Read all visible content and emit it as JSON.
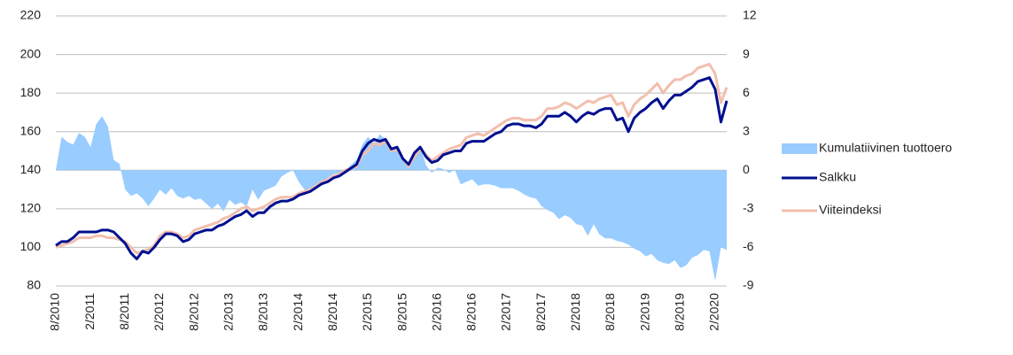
{
  "chart_data": {
    "type": "line",
    "categories": [
      "8/2010",
      null,
      null,
      null,
      null,
      null,
      "2/2011",
      null,
      null,
      null,
      null,
      null,
      "8/2011",
      null,
      null,
      null,
      null,
      null,
      "2/2012",
      null,
      null,
      null,
      null,
      null,
      "8/2012",
      null,
      null,
      null,
      null,
      null,
      "2/2013",
      null,
      null,
      null,
      null,
      null,
      "8/2013",
      null,
      null,
      null,
      null,
      null,
      "2/2014",
      null,
      null,
      null,
      null,
      null,
      "8/2014",
      null,
      null,
      null,
      null,
      null,
      "2/2015",
      null,
      null,
      null,
      null,
      null,
      "8/2015",
      null,
      null,
      null,
      null,
      null,
      "2/2016",
      null,
      null,
      null,
      null,
      null,
      "8/2016",
      null,
      null,
      null,
      null,
      null,
      "2/2017",
      null,
      null,
      null,
      null,
      null,
      "8/2017",
      null,
      null,
      null,
      null,
      null,
      "2/2018",
      null,
      null,
      null,
      null,
      null,
      "8/2018",
      null,
      null,
      null,
      null,
      null,
      "2/2019",
      null,
      null,
      null,
      null,
      null,
      "8/2019",
      null,
      null,
      null,
      null,
      null,
      "2/2020",
      null,
      null
    ],
    "series": [
      {
        "name": "Kumulatiivinen tuottoero",
        "kind": "area",
        "axis": "y2",
        "color": "#99ccff",
        "values": [
          0.0,
          2.6,
          2.2,
          2.0,
          2.9,
          2.6,
          1.8,
          3.6,
          4.2,
          3.4,
          0.8,
          0.5,
          -1.5,
          -2.0,
          -1.8,
          -2.2,
          -2.8,
          -2.2,
          -1.5,
          -1.9,
          -1.4,
          -2.0,
          -2.2,
          -2.0,
          -2.3,
          -2.2,
          -2.6,
          -3.0,
          -2.6,
          -3.2,
          -2.3,
          -2.7,
          -2.5,
          -2.8,
          -1.5,
          -2.3,
          -1.6,
          -1.4,
          -1.2,
          -0.5,
          -0.2,
          0.0,
          -0.9,
          -1.5,
          -1.7,
          -1.3,
          -1.0,
          -0.6,
          -0.3,
          -0.2,
          0.0,
          0.4,
          0.8,
          2.0,
          2.6,
          2.0,
          2.8,
          2.4,
          1.8,
          1.7,
          0.8,
          0.2,
          1.1,
          1.9,
          0.4,
          -0.2,
          0.2,
          0.1,
          -0.2,
          0.0,
          -1.1,
          -0.9,
          -0.7,
          -1.2,
          -1.1,
          -1.1,
          -1.2,
          -1.4,
          -1.4,
          -1.4,
          -1.6,
          -1.9,
          -2.1,
          -2.2,
          -2.8,
          -3.1,
          -3.3,
          -3.8,
          -3.5,
          -3.7,
          -4.2,
          -4.3,
          -5.1,
          -4.2,
          -5.0,
          -5.3,
          -5.3,
          -5.5,
          -5.6,
          -5.8,
          -6.1,
          -6.3,
          -6.7,
          -6.5,
          -7.0,
          -7.2,
          -7.3,
          -7.0,
          -7.6,
          -7.4,
          -6.8,
          -6.6,
          -6.2,
          -6.3,
          -8.6,
          -6.0,
          -6.2
        ]
      },
      {
        "name": "Viiteindeksi",
        "kind": "line",
        "color": "#f2bfae",
        "values": [
          100,
          101,
          102,
          103,
          105,
          105,
          105,
          106,
          106,
          105,
          105,
          104,
          103,
          100,
          97,
          98,
          99,
          101,
          106,
          108,
          108,
          107,
          105,
          106,
          109,
          110,
          111,
          112,
          113,
          115,
          116,
          118,
          120,
          121,
          119,
          120,
          121,
          123,
          125,
          126,
          126,
          126,
          128,
          129,
          130,
          132,
          134,
          135,
          137,
          138,
          140,
          141,
          142,
          148,
          150,
          154,
          153,
          155,
          150,
          151,
          146,
          142,
          147,
          151,
          148,
          145,
          147,
          149,
          151,
          152,
          153,
          157,
          158,
          159,
          158,
          160,
          162,
          164,
          166,
          167,
          167,
          166,
          166,
          166,
          168,
          172,
          172,
          173,
          175,
          174,
          172,
          174,
          176,
          175,
          177,
          178,
          179,
          174,
          175,
          168,
          174,
          177,
          179,
          182,
          185,
          180,
          184,
          187,
          187,
          189,
          190,
          193,
          194,
          195,
          190,
          175,
          183
        ]
      },
      {
        "name": "Salkku",
        "kind": "line",
        "color": "#000f8f",
        "values": [
          101,
          103,
          103,
          105,
          108,
          108,
          108,
          108,
          109,
          109,
          108,
          105,
          102,
          97,
          94,
          98,
          97,
          100,
          104,
          107,
          107,
          106,
          103,
          104,
          107,
          108,
          109,
          109,
          111,
          112,
          114,
          116,
          117,
          119,
          116,
          118,
          118,
          121,
          123,
          124,
          124,
          125,
          127,
          128,
          129,
          131,
          133,
          134,
          136,
          137,
          139,
          141,
          143,
          150,
          154,
          156,
          155,
          156,
          151,
          152,
          146,
          143,
          149,
          152,
          147,
          144,
          145,
          148,
          149,
          150,
          150,
          154,
          155,
          155,
          155,
          157,
          159,
          160,
          163,
          164,
          164,
          163,
          163,
          162,
          164,
          168,
          168,
          168,
          170,
          168,
          165,
          168,
          170,
          169,
          171,
          172,
          172,
          166,
          167,
          160,
          167,
          170,
          172,
          175,
          177,
          172,
          176,
          179,
          179,
          181,
          183,
          186,
          187,
          188,
          182,
          165,
          176
        ]
      }
    ],
    "legend_order": [
      "Kumulatiivinen tuottoero",
      "Salkku",
      "Viiteindeksi"
    ],
    "ylim": [
      80,
      220
    ],
    "yticks": [
      80,
      100,
      120,
      140,
      160,
      180,
      200,
      220
    ],
    "y2lim": [
      -9,
      12
    ],
    "y2ticks": [
      -9,
      -6,
      -3,
      0,
      3,
      6,
      9,
      12
    ],
    "grid": true,
    "legend": "right"
  }
}
